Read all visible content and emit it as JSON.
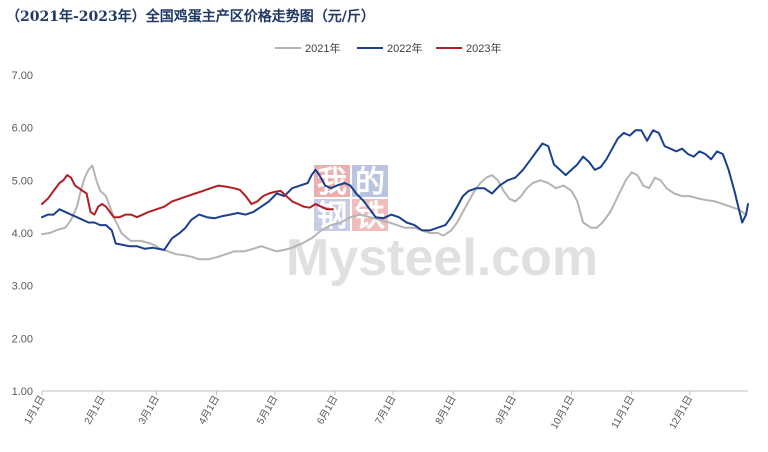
{
  "title": "（2021年-2023年）全国鸡蛋主产区价格走势图（元/斤）",
  "watermark": {
    "brand": "Mysteel.com",
    "cn_chars": [
      "我",
      "的",
      "钢",
      "铁"
    ]
  },
  "chart_data": {
    "type": "line",
    "ylim": [
      1.0,
      7.0
    ],
    "yticks": [
      "1.00",
      "2.00",
      "3.00",
      "4.00",
      "5.00",
      "6.00",
      "7.00"
    ],
    "x_tick_labels": [
      "1月1日",
      "2月1日",
      "3月1日",
      "4月1日",
      "5月1日",
      "6月1日",
      "7月1日",
      "8月1日",
      "9月1日",
      "10月1日",
      "11月1日",
      "12月1日"
    ],
    "x_unit": "day_of_year",
    "x_domain": [
      1,
      365
    ],
    "legend_position": "top-center",
    "series": [
      {
        "name": "2021年",
        "color": "#b4b4b4",
        "points": [
          [
            1,
            3.98
          ],
          [
            5,
            4.0
          ],
          [
            9,
            4.06
          ],
          [
            13,
            4.1
          ],
          [
            16,
            4.25
          ],
          [
            19,
            4.5
          ],
          [
            21,
            4.8
          ],
          [
            23,
            5.05
          ],
          [
            25,
            5.2
          ],
          [
            27,
            5.28
          ],
          [
            29,
            5.0
          ],
          [
            31,
            4.8
          ],
          [
            34,
            4.7
          ],
          [
            36,
            4.5
          ],
          [
            38,
            4.3
          ],
          [
            40,
            4.15
          ],
          [
            42,
            4.0
          ],
          [
            45,
            3.9
          ],
          [
            47,
            3.85
          ],
          [
            52,
            3.85
          ],
          [
            57,
            3.8
          ],
          [
            60,
            3.75
          ],
          [
            62,
            3.7
          ],
          [
            66,
            3.65
          ],
          [
            70,
            3.6
          ],
          [
            74,
            3.58
          ],
          [
            78,
            3.55
          ],
          [
            82,
            3.5
          ],
          [
            87,
            3.5
          ],
          [
            92,
            3.55
          ],
          [
            96,
            3.6
          ],
          [
            100,
            3.65
          ],
          [
            105,
            3.65
          ],
          [
            110,
            3.7
          ],
          [
            114,
            3.75
          ],
          [
            118,
            3.7
          ],
          [
            122,
            3.65
          ],
          [
            126,
            3.68
          ],
          [
            130,
            3.72
          ],
          [
            135,
            3.8
          ],
          [
            140,
            3.9
          ],
          [
            145,
            4.05
          ],
          [
            150,
            4.15
          ],
          [
            155,
            4.2
          ],
          [
            160,
            4.3
          ],
          [
            165,
            4.35
          ],
          [
            170,
            4.3
          ],
          [
            175,
            4.25
          ],
          [
            180,
            4.2
          ],
          [
            184,
            4.15
          ],
          [
            188,
            4.1
          ],
          [
            193,
            4.1
          ],
          [
            197,
            4.05
          ],
          [
            201,
            4.0
          ],
          [
            205,
            4.0
          ],
          [
            208,
            3.95
          ],
          [
            212,
            4.05
          ],
          [
            215,
            4.2
          ],
          [
            218,
            4.4
          ],
          [
            221,
            4.6
          ],
          [
            224,
            4.8
          ],
          [
            227,
            4.95
          ],
          [
            230,
            5.05
          ],
          [
            233,
            5.1
          ],
          [
            236,
            5.0
          ],
          [
            239,
            4.8
          ],
          [
            242,
            4.65
          ],
          [
            245,
            4.6
          ],
          [
            248,
            4.7
          ],
          [
            251,
            4.85
          ],
          [
            254,
            4.95
          ],
          [
            258,
            5.0
          ],
          [
            262,
            4.95
          ],
          [
            266,
            4.85
          ],
          [
            270,
            4.9
          ],
          [
            274,
            4.8
          ],
          [
            277,
            4.6
          ],
          [
            280,
            4.2
          ],
          [
            284,
            4.1
          ],
          [
            287,
            4.1
          ],
          [
            290,
            4.2
          ],
          [
            294,
            4.4
          ],
          [
            298,
            4.7
          ],
          [
            302,
            5.0
          ],
          [
            305,
            5.15
          ],
          [
            308,
            5.1
          ],
          [
            311,
            4.9
          ],
          [
            314,
            4.85
          ],
          [
            317,
            5.05
          ],
          [
            320,
            5.0
          ],
          [
            323,
            4.85
          ],
          [
            327,
            4.75
          ],
          [
            331,
            4.7
          ],
          [
            335,
            4.7
          ],
          [
            340,
            4.65
          ],
          [
            344,
            4.62
          ],
          [
            348,
            4.6
          ],
          [
            352,
            4.55
          ],
          [
            356,
            4.5
          ],
          [
            360,
            4.45
          ],
          [
            364,
            4.35
          ]
        ]
      },
      {
        "name": "2022年",
        "color": "#1a3f8f",
        "points": [
          [
            1,
            4.3
          ],
          [
            4,
            4.35
          ],
          [
            7,
            4.35
          ],
          [
            10,
            4.45
          ],
          [
            13,
            4.4
          ],
          [
            16,
            4.35
          ],
          [
            19,
            4.3
          ],
          [
            22,
            4.25
          ],
          [
            25,
            4.2
          ],
          [
            28,
            4.2
          ],
          [
            31,
            4.15
          ],
          [
            34,
            4.15
          ],
          [
            37,
            4.05
          ],
          [
            39,
            3.8
          ],
          [
            42,
            3.78
          ],
          [
            46,
            3.75
          ],
          [
            50,
            3.75
          ],
          [
            54,
            3.7
          ],
          [
            58,
            3.72
          ],
          [
            61,
            3.7
          ],
          [
            64,
            3.68
          ],
          [
            68,
            3.9
          ],
          [
            72,
            4.0
          ],
          [
            75,
            4.1
          ],
          [
            78,
            4.25
          ],
          [
            82,
            4.35
          ],
          [
            86,
            4.3
          ],
          [
            90,
            4.28
          ],
          [
            94,
            4.32
          ],
          [
            98,
            4.35
          ],
          [
            102,
            4.38
          ],
          [
            106,
            4.35
          ],
          [
            110,
            4.4
          ],
          [
            114,
            4.5
          ],
          [
            118,
            4.6
          ],
          [
            122,
            4.75
          ],
          [
            126,
            4.7
          ],
          [
            130,
            4.85
          ],
          [
            134,
            4.9
          ],
          [
            138,
            4.95
          ],
          [
            140,
            5.1
          ],
          [
            142,
            5.2
          ],
          [
            144,
            5.1
          ],
          [
            147,
            4.9
          ],
          [
            150,
            4.85
          ],
          [
            153,
            4.9
          ],
          [
            157,
            4.95
          ],
          [
            160,
            4.9
          ],
          [
            163,
            4.75
          ],
          [
            167,
            4.6
          ],
          [
            170,
            4.45
          ],
          [
            173,
            4.3
          ],
          [
            177,
            4.28
          ],
          [
            181,
            4.35
          ],
          [
            185,
            4.3
          ],
          [
            189,
            4.2
          ],
          [
            193,
            4.15
          ],
          [
            197,
            4.05
          ],
          [
            201,
            4.05
          ],
          [
            205,
            4.1
          ],
          [
            209,
            4.15
          ],
          [
            212,
            4.3
          ],
          [
            215,
            4.5
          ],
          [
            218,
            4.7
          ],
          [
            221,
            4.8
          ],
          [
            225,
            4.85
          ],
          [
            229,
            4.85
          ],
          [
            233,
            4.75
          ],
          [
            237,
            4.9
          ],
          [
            241,
            5.0
          ],
          [
            245,
            5.05
          ],
          [
            249,
            5.2
          ],
          [
            253,
            5.4
          ],
          [
            256,
            5.55
          ],
          [
            259,
            5.7
          ],
          [
            262,
            5.65
          ],
          [
            265,
            5.3
          ],
          [
            268,
            5.2
          ],
          [
            271,
            5.1
          ],
          [
            274,
            5.2
          ],
          [
            277,
            5.3
          ],
          [
            280,
            5.45
          ],
          [
            283,
            5.35
          ],
          [
            286,
            5.2
          ],
          [
            289,
            5.25
          ],
          [
            292,
            5.4
          ],
          [
            295,
            5.6
          ],
          [
            298,
            5.8
          ],
          [
            301,
            5.9
          ],
          [
            304,
            5.85
          ],
          [
            307,
            5.95
          ],
          [
            310,
            5.95
          ],
          [
            313,
            5.75
          ],
          [
            316,
            5.95
          ],
          [
            319,
            5.9
          ],
          [
            322,
            5.65
          ],
          [
            325,
            5.6
          ],
          [
            328,
            5.55
          ],
          [
            331,
            5.6
          ],
          [
            334,
            5.5
          ],
          [
            337,
            5.45
          ],
          [
            340,
            5.55
          ],
          [
            343,
            5.5
          ],
          [
            346,
            5.4
          ],
          [
            349,
            5.55
          ],
          [
            352,
            5.5
          ],
          [
            355,
            5.2
          ],
          [
            358,
            4.8
          ],
          [
            360,
            4.5
          ],
          [
            362,
            4.2
          ],
          [
            364,
            4.35
          ],
          [
            365,
            4.55
          ]
        ]
      },
      {
        "name": "2023年",
        "color": "#b01f24",
        "points": [
          [
            1,
            4.55
          ],
          [
            4,
            4.65
          ],
          [
            7,
            4.8
          ],
          [
            10,
            4.95
          ],
          [
            12,
            5.0
          ],
          [
            14,
            5.1
          ],
          [
            16,
            5.05
          ],
          [
            18,
            4.9
          ],
          [
            20,
            4.85
          ],
          [
            22,
            4.8
          ],
          [
            24,
            4.75
          ],
          [
            26,
            4.4
          ],
          [
            28,
            4.35
          ],
          [
            30,
            4.5
          ],
          [
            32,
            4.55
          ],
          [
            34,
            4.5
          ],
          [
            36,
            4.4
          ],
          [
            38,
            4.3
          ],
          [
            41,
            4.3
          ],
          [
            44,
            4.35
          ],
          [
            47,
            4.35
          ],
          [
            50,
            4.3
          ],
          [
            53,
            4.35
          ],
          [
            56,
            4.4
          ],
          [
            60,
            4.45
          ],
          [
            64,
            4.5
          ],
          [
            68,
            4.6
          ],
          [
            72,
            4.65
          ],
          [
            76,
            4.7
          ],
          [
            80,
            4.75
          ],
          [
            84,
            4.8
          ],
          [
            88,
            4.85
          ],
          [
            92,
            4.9
          ],
          [
            96,
            4.88
          ],
          [
            100,
            4.85
          ],
          [
            103,
            4.82
          ],
          [
            106,
            4.7
          ],
          [
            109,
            4.55
          ],
          [
            112,
            4.6
          ],
          [
            115,
            4.7
          ],
          [
            118,
            4.75
          ],
          [
            121,
            4.78
          ],
          [
            124,
            4.8
          ],
          [
            127,
            4.7
          ],
          [
            130,
            4.6
          ],
          [
            133,
            4.55
          ],
          [
            136,
            4.5
          ],
          [
            139,
            4.48
          ],
          [
            142,
            4.55
          ],
          [
            145,
            4.5
          ],
          [
            148,
            4.45
          ],
          [
            151,
            4.45
          ]
        ]
      }
    ]
  }
}
